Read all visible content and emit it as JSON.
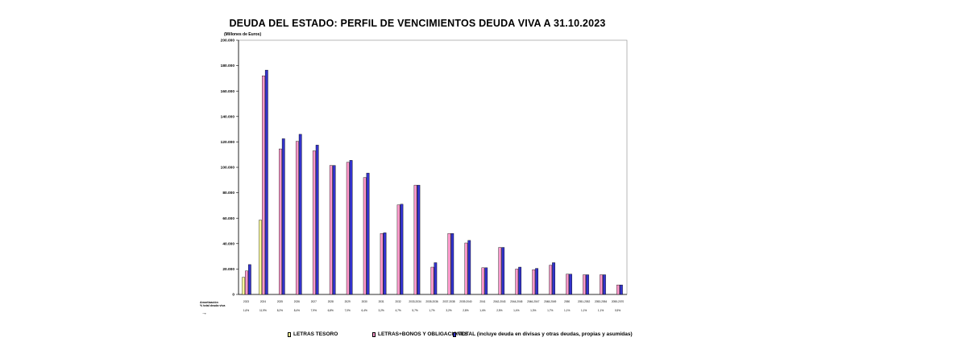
{
  "chart_data": {
    "type": "bar",
    "title": "DEUDA DEL ESTADO: PERFIL DE VENCIMIENTOS DEUDA VIVA A 31.10.2023",
    "ylabel": "(Millones de Euros)",
    "xlabel": "",
    "ylim": [
      0,
      200000
    ],
    "yticks": [
      "0",
      "20.000",
      "40.000",
      "60.000",
      "80.000",
      "100.000",
      "120.000",
      "140.000",
      "160.000",
      "180.000",
      "200.000"
    ],
    "grid": false,
    "legend_position": "bottom",
    "categories": [
      "2023",
      "2024",
      "2025",
      "2026",
      "2027",
      "2028",
      "2029",
      "2030",
      "2031",
      "2032",
      "2033-2034",
      "2035-2036",
      "2037-2038",
      "2039-2040",
      "2041",
      "2042-2043",
      "2044-2045",
      "2046-2047",
      "2048-2049",
      "2050",
      "2051-2052",
      "2053-2054",
      "2055-2070"
    ],
    "category_pct": [
      "1,6%",
      "11,9%",
      "8,2%",
      "8,4%",
      "7,9%",
      "6,8%",
      "7,0%",
      "6,4%",
      "3,2%",
      "4,7%",
      "5,7%",
      "1,7%",
      "3,2%",
      "2,8%",
      "1,4%",
      "2,5%",
      "1,4%",
      "1,3%",
      "1,7%",
      "1,1%",
      "1,1%",
      "1,1%",
      "0,5%"
    ],
    "side_label_1": "Amortización",
    "side_label_2": "% total deuda viva",
    "series": [
      {
        "name": "LETRAS TESORO",
        "color": "#ffff99",
        "values": [
          13500,
          58500,
          null,
          null,
          null,
          null,
          null,
          null,
          null,
          null,
          null,
          null,
          null,
          null,
          null,
          null,
          null,
          null,
          null,
          null,
          null,
          null,
          null
        ]
      },
      {
        "name": "LETRAS+BONOS Y OBLIGACIONES",
        "color": "#ff99cc",
        "values": [
          18500,
          172000,
          114500,
          120500,
          113000,
          101500,
          104000,
          92000,
          48000,
          70500,
          86000,
          21500,
          48000,
          40500,
          21000,
          37000,
          20000,
          19500,
          23000,
          16000,
          15500,
          15500,
          7500
        ]
      },
      {
        "name": "TOTAL (incluye deuda en divisas y otras deudas, propias y asumidas)",
        "color": "#3333cc",
        "values": [
          23500,
          176500,
          122500,
          126000,
          117500,
          101500,
          105500,
          95500,
          48500,
          71000,
          86000,
          25000,
          48000,
          42500,
          21000,
          37000,
          21500,
          20500,
          25000,
          16000,
          15500,
          15500,
          7500
        ]
      }
    ]
  }
}
